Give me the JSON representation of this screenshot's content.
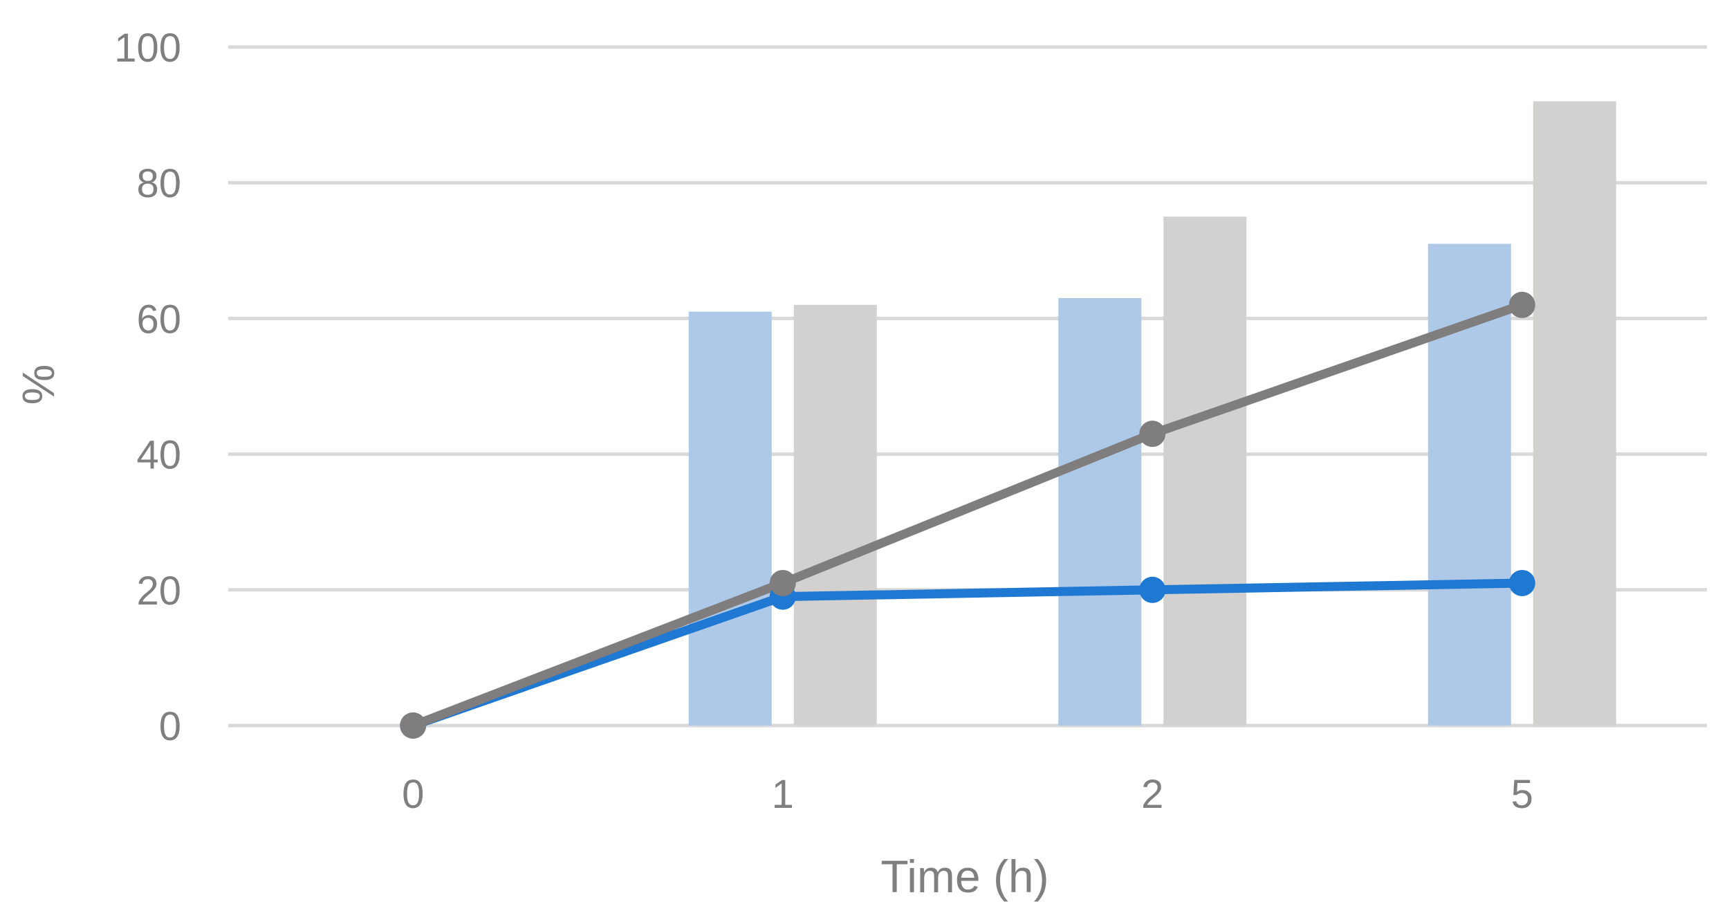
{
  "chart_data": {
    "type": "bar",
    "categories": [
      "0",
      "1",
      "2",
      "5"
    ],
    "xlabel": "Time (h)",
    "ylabel": "%",
    "ylim": [
      0,
      100
    ],
    "yticks": [
      "0",
      "20",
      "40",
      "60",
      "80",
      "100"
    ],
    "grid": true,
    "bar_series": [
      {
        "values": [
          0,
          61,
          63,
          71
        ],
        "color": "#aec8e8"
      },
      {
        "values": [
          0,
          62,
          75,
          92
        ],
        "color": "#d2d1cf"
      }
    ],
    "line_series": [
      {
        "values": [
          0,
          19,
          20,
          21
        ],
        "color": "#1f78d1"
      },
      {
        "values": [
          0,
          21,
          43,
          62
        ],
        "color": "#7f7d7e"
      }
    ]
  }
}
